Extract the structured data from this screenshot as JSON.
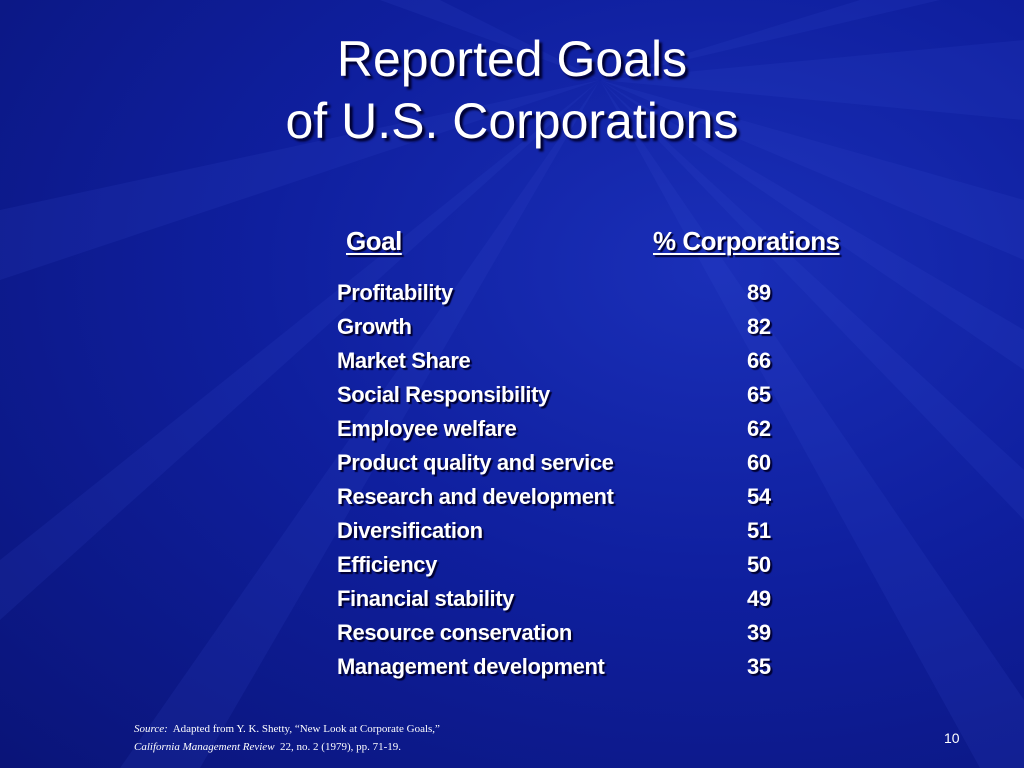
{
  "slide": {
    "title_line1": "Reported Goals",
    "title_line2": "of U.S. Corporations",
    "columns": {
      "goal": "Goal",
      "pct": "% Corporations"
    },
    "rows": [
      {
        "goal": "Profitability",
        "pct": "89"
      },
      {
        "goal": "Growth",
        "pct": "82"
      },
      {
        "goal": "Market Share",
        "pct": "66"
      },
      {
        "goal": "Social Responsibility",
        "pct": "65"
      },
      {
        "goal": "Employee welfare",
        "pct": "62"
      },
      {
        "goal": "Product quality and service",
        "pct": "60"
      },
      {
        "goal": "Research and development",
        "pct": "54"
      },
      {
        "goal": "Diversification",
        "pct": "51"
      },
      {
        "goal": "Efficiency",
        "pct": "50"
      },
      {
        "goal": "Financial stability",
        "pct": "49"
      },
      {
        "goal": "Resource conservation",
        "pct": "39"
      },
      {
        "goal": "Management development",
        "pct": "35"
      }
    ],
    "source": {
      "label": "Source:",
      "line1": "Adapted from Y. K. Shetty, “New Look at Corporate Goals,”",
      "journal": "California Management Review",
      "line2": "22, no. 2 (1979), pp. 71-19."
    },
    "page_number": "10"
  },
  "colors": {
    "background": "#0f1f9e",
    "text": "#ffffff"
  }
}
